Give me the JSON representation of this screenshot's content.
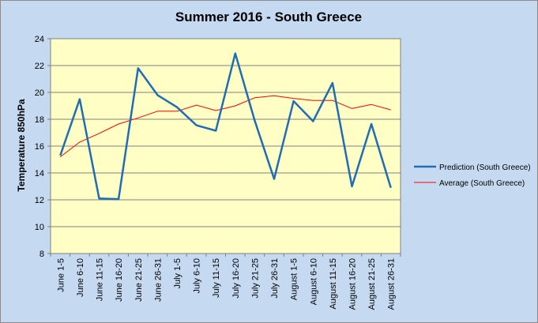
{
  "chart_data": {
    "type": "line",
    "title": "Summer 2016 - South Greece",
    "xlabel": "",
    "ylabel": "Temperature 850hPa",
    "ylim": [
      8,
      24
    ],
    "yticks": [
      8,
      10,
      12,
      14,
      16,
      18,
      20,
      22,
      24
    ],
    "grid": "horizontal",
    "legend_position": "right",
    "categories": [
      "June 1-5",
      "June 6-10",
      "June 11-15",
      "June 16-20",
      "June 21-25",
      "June 26-31",
      "July 1-5",
      "July 6-10",
      "July 11-15",
      "July 16-20",
      "July 21-25",
      "July 26-31",
      "August 1-5",
      "August 6-10",
      "August 11-15",
      "August 16-20",
      "August 21-25",
      "August 26-31"
    ],
    "series": [
      {
        "name": "Prediction (South Greece)",
        "color": "#1f6db5",
        "values": [
          15.3,
          19.5,
          12.1,
          12.05,
          21.8,
          19.8,
          18.9,
          17.55,
          17.15,
          22.9,
          17.9,
          13.55,
          19.35,
          17.85,
          20.7,
          13.0,
          17.65,
          12.9
        ]
      },
      {
        "name": "Average (South Greece)",
        "color": "#ff0000",
        "values": [
          15.2,
          16.3,
          16.95,
          17.65,
          18.1,
          18.6,
          18.6,
          19.05,
          18.65,
          19.0,
          19.6,
          19.75,
          19.55,
          19.4,
          19.4,
          18.8,
          19.1,
          18.7
        ]
      }
    ]
  }
}
